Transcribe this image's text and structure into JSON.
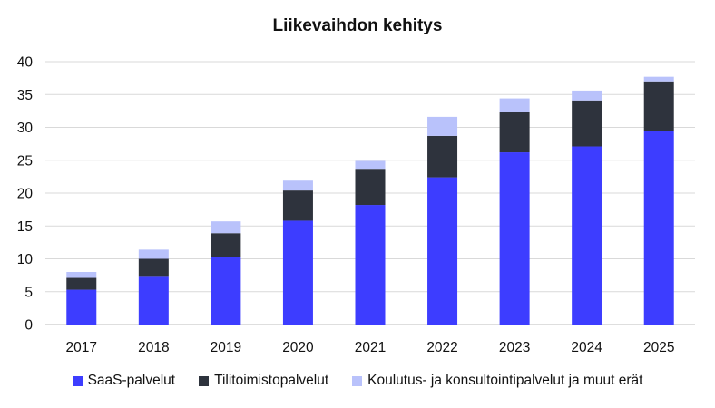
{
  "chart_data": {
    "type": "bar",
    "stacked": true,
    "title": "Liikevaihdon kehitys",
    "xlabel": "",
    "ylabel": "",
    "categories": [
      "2017",
      "2018",
      "2019",
      "2020",
      "2021",
      "2022",
      "2023",
      "2024",
      "2025"
    ],
    "ylim": [
      0,
      40
    ],
    "yticks": [
      0,
      5,
      10,
      15,
      20,
      25,
      30,
      35,
      40
    ],
    "grid": true,
    "legend_position": "bottom",
    "series": [
      {
        "name": "SaaS-palvelut",
        "color": "#3d3dff",
        "values": [
          5.3,
          7.4,
          10.3,
          15.8,
          18.2,
          22.4,
          26.2,
          27.1,
          29.4
        ]
      },
      {
        "name": "Tilitoimistopalvelut",
        "color": "#2e333d",
        "values": [
          1.8,
          2.6,
          3.6,
          4.6,
          5.5,
          6.3,
          6.1,
          7.0,
          7.6
        ]
      },
      {
        "name": "Koulutus- ja konsultointipalvelut ja muut erät",
        "color": "#b9c2fb",
        "values": [
          0.9,
          1.4,
          1.8,
          1.5,
          1.2,
          2.9,
          2.1,
          1.5,
          0.7
        ]
      }
    ]
  }
}
